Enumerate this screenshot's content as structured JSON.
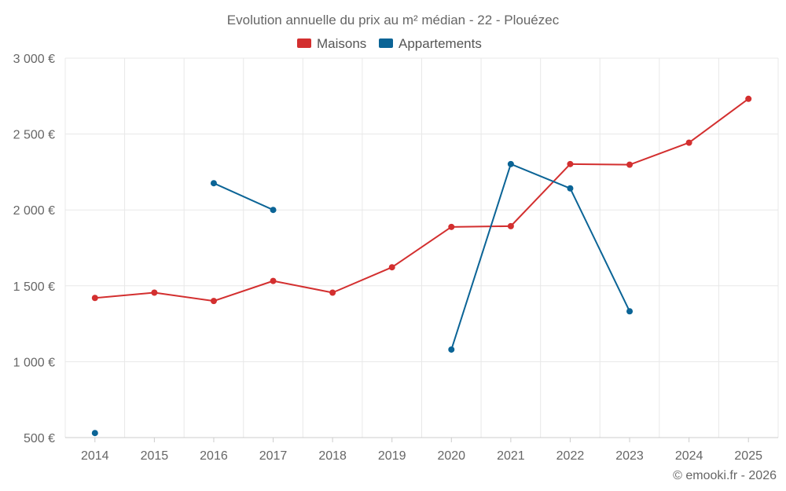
{
  "chart_data": {
    "type": "line",
    "title": "Evolution annuelle du prix au m² médian - 22 - Plouézec",
    "categories": [
      "2014",
      "2015",
      "2016",
      "2017",
      "2018",
      "2019",
      "2020",
      "2021",
      "2022",
      "2023",
      "2024",
      "2025"
    ],
    "series": [
      {
        "name": "Maisons",
        "color": "#d32f2f",
        "values": [
          1420,
          1455,
          1400,
          1532,
          1455,
          1622,
          1888,
          1893,
          2302,
          2298,
          2443,
          2732
        ]
      },
      {
        "name": "Appartements",
        "color": "#0b6496",
        "values": [
          530,
          null,
          2176,
          2000,
          null,
          null,
          1080,
          2302,
          2142,
          1332,
          null,
          null
        ]
      }
    ],
    "ylim": [
      500,
      3000
    ],
    "yticks": [
      500,
      1000,
      1500,
      2000,
      2500,
      3000
    ],
    "ytick_labels": [
      "500 €",
      "1 000 €",
      "1 500 €",
      "2 000 €",
      "2 500 €",
      "3 000 €"
    ],
    "grid": true,
    "legend_position": "top-center",
    "xlabel": "",
    "ylabel": ""
  },
  "credit": "© emooki.fr - 2026"
}
